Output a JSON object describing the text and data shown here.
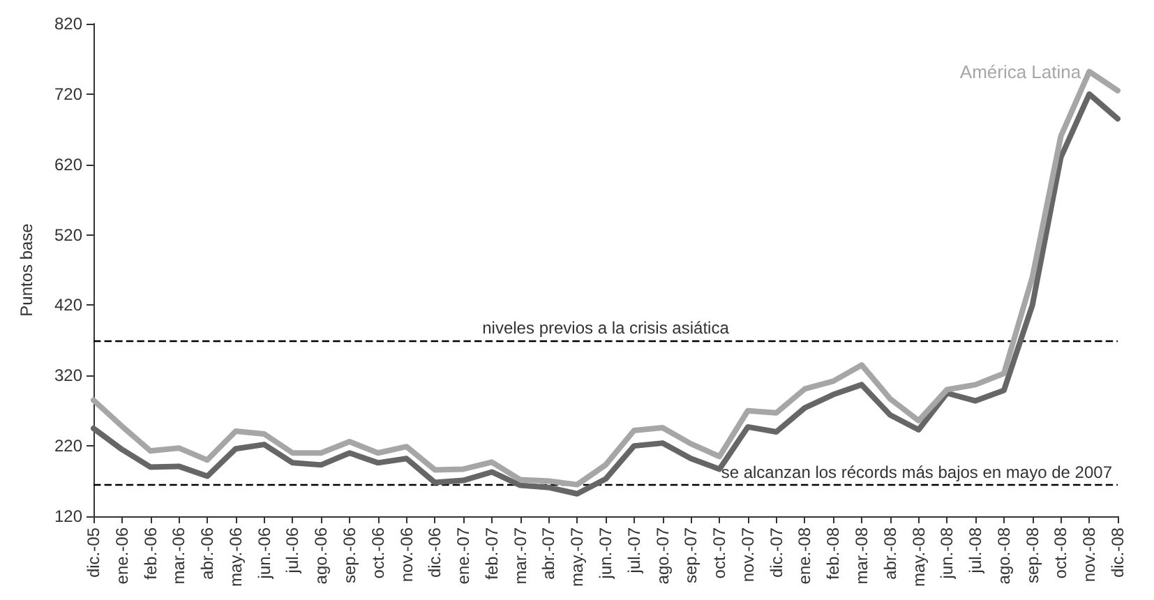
{
  "chart_data": {
    "type": "line",
    "ylabel": "Puntos base",
    "categories": [
      "dic.-05",
      "ene.-06",
      "feb.-06",
      "mar.-06",
      "abr.-06",
      "may.-06",
      "jun.-06",
      "jul.-06",
      "ago.-06",
      "sep.-06",
      "oct.-06",
      "nov.-06",
      "dic.-06",
      "ene.-07",
      "feb.-07",
      "mar.-07",
      "abr.-07",
      "may.-07",
      "jun.-07",
      "jul.-07",
      "ago.-07",
      "sep.-07",
      "oct.-07",
      "nov.-07",
      "dic.-07",
      "ene.-08",
      "feb.-08",
      "mar.-08",
      "abr.-08",
      "may.-08",
      "jun.-08",
      "jul.-08",
      "ago.-08",
      "sep.-08",
      "oct.-08",
      "nov.-08",
      "dic.-08"
    ],
    "series": [
      {
        "name": "América Latina",
        "color": "#a6a6a6",
        "values": [
          285,
          248,
          213,
          217,
          200,
          241,
          237,
          210,
          210,
          226,
          210,
          219,
          186,
          187,
          197,
          172,
          170,
          165,
          193,
          242,
          246,
          223,
          205,
          270,
          267,
          301,
          312,
          335,
          287,
          256,
          300,
          307,
          323,
          460,
          660,
          752,
          725
        ]
      },
      {
        "color": "#666666",
        "values": [
          245,
          215,
          190,
          191,
          177,
          216,
          222,
          196,
          193,
          210,
          196,
          202,
          168,
          171,
          183,
          164,
          161,
          152,
          173,
          220,
          224,
          202,
          187,
          247,
          240,
          274,
          293,
          307,
          264,
          243,
          295,
          284,
          299,
          420,
          630,
          720,
          685
        ]
      }
    ],
    "ylim": [
      120,
      820
    ],
    "yticks": [
      120,
      220,
      320,
      420,
      520,
      620,
      720,
      820
    ],
    "ref_lines": [
      {
        "axis": "y",
        "value": 370,
        "label": "niveles previos a la crisis asiática",
        "line_style": "dashed",
        "color": "#000000"
      },
      {
        "axis": "y",
        "value": 165,
        "label": "se alcanzan los récords más bajos en mayo de 2007",
        "line_style": "dashed",
        "color": "#000000"
      }
    ]
  }
}
